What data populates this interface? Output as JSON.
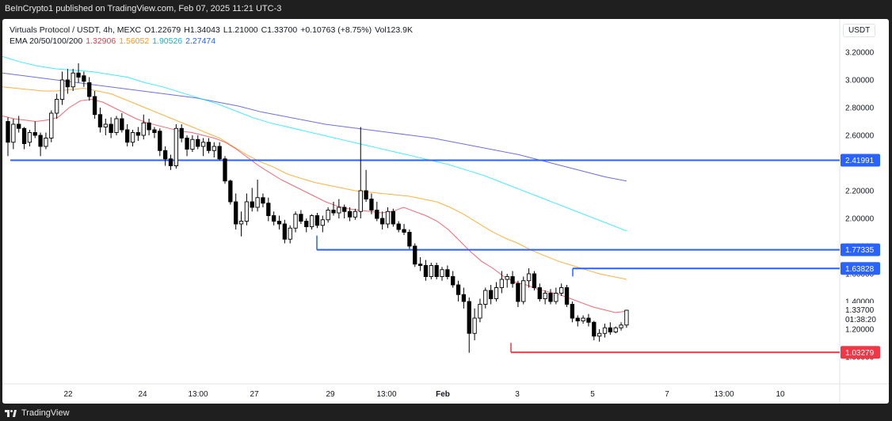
{
  "header": {
    "published": "BeInCrypto1 published on TradingView.com, Feb 07, 2025 11:21 UTC-3"
  },
  "footer": {
    "brand": "TradingView"
  },
  "legend": {
    "symbol": "Virtuals Protocol / USDT, 4h, MEXC",
    "ohlc": [
      {
        "k": "O",
        "v": "1.22679"
      },
      {
        "k": "H",
        "v": "1.34043"
      },
      {
        "k": "L",
        "v": "1.21000"
      },
      {
        "k": "C",
        "v": "1.33700"
      }
    ],
    "change": "+0.10763 (+8.75%)",
    "volume_label": "Vol",
    "volume": "123.9K",
    "ema_label": "EMA 20/50/100/200",
    "ema_values": [
      {
        "v": "1.32906",
        "color": "#f23645"
      },
      {
        "v": "1.56052",
        "color": "#ff9800"
      },
      {
        "v": "1.90526",
        "color": "#00bcd4"
      },
      {
        "v": "2.27474",
        "color": "#2962ff"
      }
    ]
  },
  "currency": "USDT",
  "chart_data": {
    "type": "candlestick",
    "ylim": [
      0.98,
      3.3
    ],
    "y_ticks": [
      "3.20000",
      "3.00000",
      "2.80000",
      "2.60000",
      "2.40000",
      "2.20000",
      "2.00000",
      "1.80000",
      "1.60000",
      "1.40000",
      "1.20000",
      "1.00000"
    ],
    "x_ticks": [
      "22",
      "24",
      "13:00",
      "27",
      "29",
      "13:00",
      "Feb",
      "3",
      "5",
      "7",
      "13:00",
      "10"
    ],
    "levels": [
      {
        "label": "2.41991",
        "value": 2.41991,
        "color": "#2962ff"
      },
      {
        "label": "1.77335",
        "value": 1.77335,
        "color": "#2962ff"
      },
      {
        "label": "1.63828",
        "value": 1.63828,
        "color": "#2962ff"
      },
      {
        "label": "1.03279",
        "value": 1.03279,
        "color": "#f23645"
      }
    ],
    "last_price": {
      "label": "1.33700",
      "countdown": "01:38:20"
    },
    "colors": {
      "up": "#ffffff",
      "down": "#000000",
      "ema20": "#f23645",
      "ema50": "#ff9800",
      "ema100": "#00e5ff",
      "ema200": "#3f3fd9"
    },
    "candles": [
      [
        2.7,
        2.73,
        2.45,
        2.55
      ],
      [
        2.55,
        2.72,
        2.5,
        2.68
      ],
      [
        2.68,
        2.74,
        2.62,
        2.65
      ],
      [
        2.65,
        2.66,
        2.5,
        2.54
      ],
      [
        2.55,
        2.64,
        2.52,
        2.62
      ],
      [
        2.62,
        2.7,
        2.58,
        2.6
      ],
      [
        2.6,
        2.62,
        2.45,
        2.52
      ],
      [
        2.52,
        2.62,
        2.5,
        2.58
      ],
      [
        2.58,
        2.78,
        2.55,
        2.76
      ],
      [
        2.76,
        2.9,
        2.72,
        2.86
      ],
      [
        2.86,
        3.06,
        2.82,
        3.0
      ],
      [
        3.0,
        3.08,
        2.9,
        2.95
      ],
      [
        2.95,
        3.08,
        2.92,
        3.05
      ],
      [
        3.05,
        3.12,
        2.98,
        3.02
      ],
      [
        3.03,
        3.06,
        2.95,
        2.99
      ],
      [
        2.98,
        3.02,
        2.85,
        2.88
      ],
      [
        2.88,
        2.92,
        2.72,
        2.75
      ],
      [
        2.75,
        2.8,
        2.62,
        2.66
      ],
      [
        2.66,
        2.72,
        2.6,
        2.68
      ],
      [
        2.68,
        2.73,
        2.58,
        2.62
      ],
      [
        2.62,
        2.74,
        2.6,
        2.72
      ],
      [
        2.72,
        2.76,
        2.62,
        2.64
      ],
      [
        2.64,
        2.68,
        2.52,
        2.55
      ],
      [
        2.55,
        2.64,
        2.52,
        2.62
      ],
      [
        2.62,
        2.66,
        2.56,
        2.6
      ],
      [
        2.6,
        2.75,
        2.57,
        2.69
      ],
      [
        2.69,
        2.72,
        2.6,
        2.64
      ],
      [
        2.64,
        2.66,
        2.58,
        2.62
      ],
      [
        2.63,
        2.65,
        2.45,
        2.49
      ],
      [
        2.49,
        2.52,
        2.38,
        2.43
      ],
      [
        2.43,
        2.46,
        2.35,
        2.38
      ],
      [
        2.38,
        2.68,
        2.36,
        2.65
      ],
      [
        2.65,
        2.68,
        2.55,
        2.58
      ],
      [
        2.58,
        2.6,
        2.45,
        2.5
      ],
      [
        2.5,
        2.6,
        2.48,
        2.57
      ],
      [
        2.57,
        2.6,
        2.5,
        2.52
      ],
      [
        2.52,
        2.58,
        2.45,
        2.55
      ],
      [
        2.55,
        2.58,
        2.47,
        2.49
      ],
      [
        2.49,
        2.55,
        2.44,
        2.52
      ],
      [
        2.52,
        2.55,
        2.42,
        2.43
      ],
      [
        2.43,
        2.45,
        2.25,
        2.27
      ],
      [
        2.27,
        2.28,
        2.1,
        2.12
      ],
      [
        2.12,
        2.18,
        1.92,
        1.96
      ],
      [
        1.96,
        2.05,
        1.87,
        1.98
      ],
      [
        1.98,
        2.18,
        1.95,
        2.12
      ],
      [
        2.12,
        2.22,
        2.05,
        2.08
      ],
      [
        2.08,
        2.28,
        2.05,
        2.15
      ],
      [
        2.15,
        2.18,
        2.08,
        2.11
      ],
      [
        2.11,
        2.15,
        1.98,
        2.02
      ],
      [
        2.02,
        2.05,
        1.95,
        1.98
      ],
      [
        1.98,
        2.02,
        1.92,
        1.96
      ],
      [
        1.96,
        1.99,
        1.82,
        1.85
      ],
      [
        1.85,
        1.95,
        1.82,
        1.93
      ],
      [
        1.93,
        2.05,
        1.9,
        2.03
      ],
      [
        2.03,
        2.06,
        1.96,
        1.98
      ],
      [
        1.98,
        2.0,
        1.9,
        1.94
      ],
      [
        1.94,
        2.03,
        1.92,
        2.02
      ],
      [
        2.02,
        2.04,
        1.93,
        1.95
      ],
      [
        1.95,
        2.02,
        1.9,
        1.99
      ],
      [
        1.99,
        2.08,
        1.97,
        2.06
      ],
      [
        2.06,
        2.12,
        2.02,
        2.04
      ],
      [
        2.04,
        2.14,
        2.0,
        2.08
      ],
      [
        2.08,
        2.1,
        2.0,
        2.05
      ],
      [
        2.05,
        2.08,
        1.98,
        2.01
      ],
      [
        2.01,
        2.07,
        1.99,
        2.05
      ],
      [
        2.05,
        2.66,
        2.0,
        2.2
      ],
      [
        2.2,
        2.35,
        2.12,
        2.14
      ],
      [
        2.14,
        2.18,
        2.03,
        2.06
      ],
      [
        2.06,
        2.12,
        1.98,
        2.0
      ],
      [
        2.0,
        2.05,
        1.92,
        1.96
      ],
      [
        1.96,
        2.08,
        1.93,
        2.05
      ],
      [
        2.05,
        2.07,
        1.94,
        1.96
      ],
      [
        1.96,
        1.98,
        1.9,
        1.92
      ],
      [
        1.92,
        1.96,
        1.88,
        1.9
      ],
      [
        1.9,
        1.92,
        1.78,
        1.8
      ],
      [
        1.8,
        1.82,
        1.65,
        1.67
      ],
      [
        1.67,
        1.72,
        1.62,
        1.66
      ],
      [
        1.66,
        1.7,
        1.55,
        1.58
      ],
      [
        1.58,
        1.68,
        1.56,
        1.66
      ],
      [
        1.66,
        1.68,
        1.56,
        1.58
      ],
      [
        1.58,
        1.65,
        1.55,
        1.63
      ],
      [
        1.63,
        1.66,
        1.56,
        1.58
      ],
      [
        1.58,
        1.62,
        1.5,
        1.52
      ],
      [
        1.52,
        1.55,
        1.4,
        1.45
      ],
      [
        1.45,
        1.5,
        1.35,
        1.4
      ],
      [
        1.4,
        1.43,
        1.03,
        1.17
      ],
      [
        1.17,
        1.35,
        1.12,
        1.28
      ],
      [
        1.28,
        1.42,
        1.25,
        1.38
      ],
      [
        1.38,
        1.5,
        1.35,
        1.48
      ],
      [
        1.48,
        1.52,
        1.38,
        1.42
      ],
      [
        1.42,
        1.54,
        1.4,
        1.5
      ],
      [
        1.5,
        1.62,
        1.46,
        1.56
      ],
      [
        1.56,
        1.6,
        1.5,
        1.58
      ],
      [
        1.58,
        1.62,
        1.5,
        1.53
      ],
      [
        1.53,
        1.55,
        1.36,
        1.4
      ],
      [
        1.4,
        1.58,
        1.38,
        1.55
      ],
      [
        1.55,
        1.64,
        1.5,
        1.6
      ],
      [
        1.6,
        1.62,
        1.48,
        1.5
      ],
      [
        1.5,
        1.53,
        1.4,
        1.42
      ],
      [
        1.42,
        1.48,
        1.38,
        1.46
      ],
      [
        1.46,
        1.49,
        1.38,
        1.4
      ],
      [
        1.4,
        1.5,
        1.38,
        1.46
      ],
      [
        1.46,
        1.53,
        1.44,
        1.5
      ],
      [
        1.5,
        1.52,
        1.36,
        1.38
      ],
      [
        1.38,
        1.4,
        1.25,
        1.28
      ],
      [
        1.28,
        1.3,
        1.22,
        1.26
      ],
      [
        1.26,
        1.3,
        1.24,
        1.28
      ],
      [
        1.28,
        1.31,
        1.22,
        1.25
      ],
      [
        1.25,
        1.26,
        1.12,
        1.15
      ],
      [
        1.15,
        1.2,
        1.11,
        1.17
      ],
      [
        1.17,
        1.24,
        1.14,
        1.21
      ],
      [
        1.21,
        1.25,
        1.16,
        1.18
      ],
      [
        1.18,
        1.22,
        1.17,
        1.21
      ],
      [
        1.21,
        1.25,
        1.19,
        1.23
      ],
      [
        1.23,
        1.34,
        1.21,
        1.337
      ]
    ],
    "ema20": [
      2.74,
      2.72,
      2.71,
      2.7,
      2.71,
      2.73,
      2.8,
      2.85,
      2.86,
      2.84,
      2.8,
      2.76,
      2.72,
      2.69,
      2.67,
      2.65,
      2.63,
      2.62,
      2.6,
      2.58,
      2.55,
      2.5,
      2.44,
      2.38,
      2.33,
      2.28,
      2.24,
      2.2,
      2.16,
      2.12,
      2.09,
      2.07,
      2.06,
      2.05,
      2.04,
      2.05,
      2.08,
      2.05,
      2.02,
      1.98,
      1.92,
      1.84,
      1.76,
      1.69,
      1.64,
      1.58,
      1.54,
      1.52,
      1.49,
      1.47,
      1.45,
      1.42,
      1.39,
      1.36,
      1.34,
      1.32,
      1.33
    ],
    "ema50": [
      2.95,
      2.94,
      2.93,
      2.92,
      2.92,
      2.93,
      2.94,
      2.92,
      2.9,
      2.86,
      2.82,
      2.78,
      2.74,
      2.7,
      2.66,
      2.62,
      2.58,
      2.52,
      2.46,
      2.41,
      2.37,
      2.32,
      2.29,
      2.26,
      2.24,
      2.22,
      2.2,
      2.19,
      2.18,
      2.17,
      2.16,
      2.14,
      2.12,
      2.08,
      2.03,
      1.97,
      1.91,
      1.86,
      1.82,
      1.77,
      1.73,
      1.69,
      1.66,
      1.63,
      1.6,
      1.58,
      1.56
    ],
    "ema100": [
      3.17,
      3.13,
      3.1,
      3.08,
      3.07,
      3.06,
      3.04,
      3.02,
      2.98,
      2.95,
      2.91,
      2.87,
      2.83,
      2.78,
      2.73,
      2.69,
      2.66,
      2.63,
      2.6,
      2.57,
      2.54,
      2.51,
      2.48,
      2.45,
      2.42,
      2.39,
      2.35,
      2.31,
      2.26,
      2.21,
      2.16,
      2.11,
      2.06,
      2.01,
      1.96,
      1.91
    ],
    "ema200": [
      3.05,
      3.03,
      3.01,
      2.99,
      2.97,
      2.95,
      2.93,
      2.91,
      2.89,
      2.87,
      2.84,
      2.81,
      2.77,
      2.74,
      2.71,
      2.68,
      2.66,
      2.64,
      2.62,
      2.6,
      2.58,
      2.55,
      2.52,
      2.49,
      2.46,
      2.42,
      2.38,
      2.34,
      2.3,
      2.27
    ]
  }
}
